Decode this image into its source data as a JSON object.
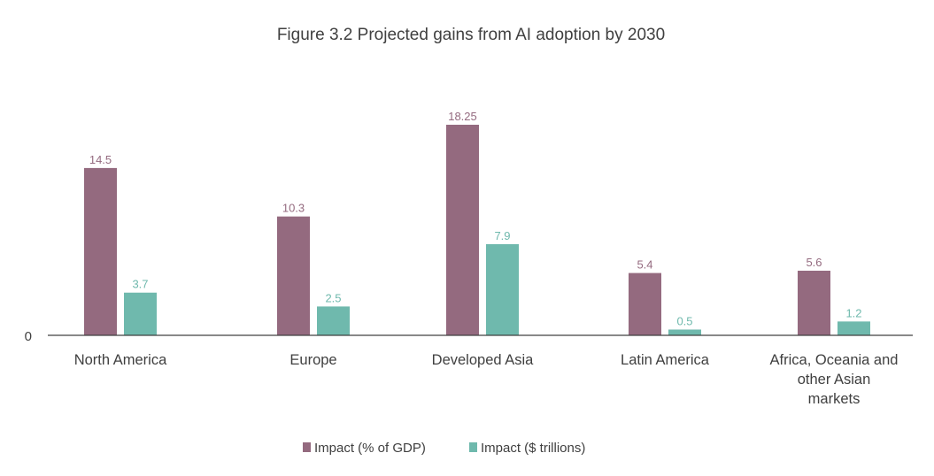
{
  "chart_data": {
    "type": "bar",
    "title": "Figure 3.2 Projected gains from AI adoption by 2030",
    "categories": [
      [
        "North America"
      ],
      [
        "Europe"
      ],
      [
        "Developed Asia"
      ],
      [
        "Latin America"
      ],
      [
        "Africa, Oceania and",
        "other Asian",
        "markets"
      ]
    ],
    "series": [
      {
        "name": "Impact (% of GDP)",
        "values": [
          14.5,
          10.3,
          18.25,
          5.4,
          5.6
        ],
        "labels": [
          "14.5",
          "10.3",
          "18.25",
          "5.4",
          "5.6"
        ],
        "color": "#946a7f"
      },
      {
        "name": "Impact ($ trillions)",
        "values": [
          3.7,
          2.5,
          7.9,
          0.5,
          1.2
        ],
        "labels": [
          "3.7",
          "2.5",
          "7.9",
          "0.5",
          "1.2"
        ],
        "color": "#6fb9ad"
      }
    ],
    "yaxis_ticks": [
      "0"
    ],
    "ylim": [
      0,
      18.25
    ],
    "grid": false,
    "legend_position": "bottom"
  }
}
